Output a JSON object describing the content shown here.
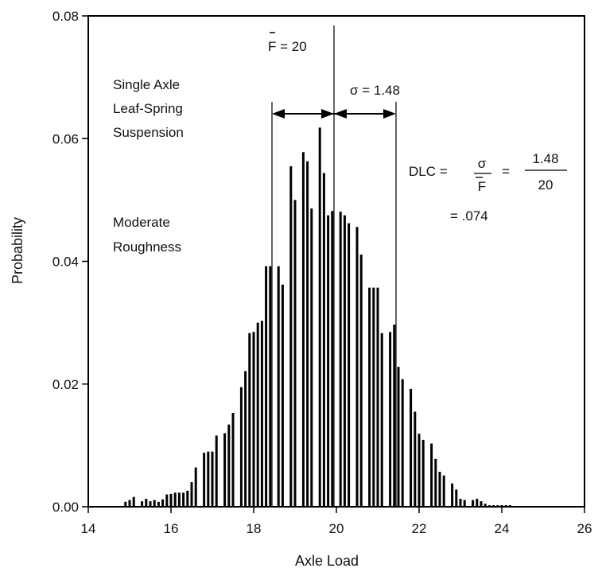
{
  "chart_data": {
    "type": "bar",
    "title": "",
    "xlabel": "Axle Load",
    "ylabel": "Probability",
    "xlim": [
      14,
      26
    ],
    "ylim": [
      0,
      0.08
    ],
    "x_ticks": [
      "14",
      "16",
      "18",
      "20",
      "22",
      "24",
      "26"
    ],
    "y_ticks": [
      "0.00",
      "0.02",
      "0.04",
      "0.06",
      "0.08"
    ],
    "grid": false,
    "legend": "none",
    "bar_color": "#000000",
    "series": [
      {
        "x": [
          14.9,
          15.0,
          15.1,
          15.3,
          15.4,
          15.5,
          15.6,
          15.7,
          15.8,
          15.9,
          16.0,
          16.1,
          16.2,
          16.3,
          16.4,
          16.5,
          16.6,
          16.8,
          16.9,
          17.0,
          17.1,
          17.3,
          17.4,
          17.5,
          17.7,
          17.8,
          17.9,
          18.0,
          18.1,
          18.2,
          18.3,
          18.4,
          18.6,
          18.7,
          18.9,
          19.0,
          19.2,
          19.3,
          19.4,
          19.6,
          19.7,
          19.8,
          19.9,
          20.1,
          20.2,
          20.3,
          20.5,
          20.6,
          20.8,
          20.9,
          21.0,
          21.1,
          21.3,
          21.4,
          21.5,
          21.6,
          21.8,
          21.9,
          22.0,
          22.1,
          22.3,
          22.4,
          22.5,
          22.6,
          22.8,
          22.9,
          23.0,
          23.1,
          23.3,
          23.4,
          23.5,
          23.6,
          23.7,
          23.8,
          23.9,
          24.0,
          24.1,
          24.2
        ],
        "values": [
          0.0008,
          0.0011,
          0.0016,
          0.0009,
          0.0013,
          0.0009,
          0.0011,
          0.0008,
          0.0012,
          0.002,
          0.0021,
          0.0023,
          0.0023,
          0.0023,
          0.0026,
          0.004,
          0.0064,
          0.0088,
          0.009,
          0.009,
          0.0116,
          0.012,
          0.0134,
          0.0153,
          0.0195,
          0.0221,
          0.0283,
          0.0285,
          0.03,
          0.0303,
          0.0392,
          0.0392,
          0.0392,
          0.0362,
          0.0555,
          0.05,
          0.0578,
          0.0563,
          0.0486,
          0.0618,
          0.0544,
          0.0475,
          0.0482,
          0.0481,
          0.0475,
          0.0462,
          0.0456,
          0.0411,
          0.0357,
          0.0357,
          0.0357,
          0.0283,
          0.0285,
          0.0297,
          0.0228,
          0.0208,
          0.0192,
          0.0155,
          0.0119,
          0.0109,
          0.0103,
          0.0078,
          0.0057,
          0.0051,
          0.0038,
          0.0028,
          0.0013,
          0.0011,
          0.0011,
          0.0013,
          0.0009,
          0.0005,
          0.0,
          0.0,
          0.0,
          0.0,
          0.0,
          0.0
        ]
      }
    ],
    "annotations": {
      "mean_label": "F = 20",
      "sigma_label": "σ = 1.48",
      "suspension_line1": "Single Axle",
      "suspension_line2": "Leaf-Spring",
      "suspension_line3": "Suspension",
      "roughness_line1": "Moderate",
      "roughness_line2": "Roughness",
      "dlc_prefix": "DLC =",
      "dlc_num_symbol": "σ",
      "dlc_den_symbol": "F",
      "dlc_equals": "=",
      "dlc_num_value": "1.48",
      "dlc_den_value": "20",
      "dlc_result": "= .074"
    }
  }
}
